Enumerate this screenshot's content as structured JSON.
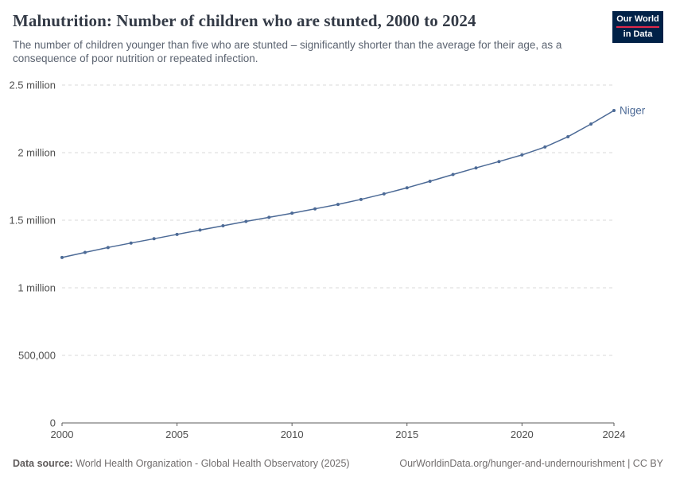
{
  "header": {
    "title": "Malnutrition: Number of children who are stunted, 2000 to 2024",
    "subtitle": "The number of children younger than five who are stunted – significantly shorter than the average for their age, as a consequence of poor nutrition or repeated infection.",
    "logo": {
      "line1": "Our World",
      "line2": "in Data",
      "bg_color": "#002147",
      "accent_color": "#e0294a"
    }
  },
  "chart_data": {
    "type": "line",
    "title": "Malnutrition: Number of children who are stunted, 2000 to 2024",
    "xlabel": "",
    "ylabel": "",
    "xlim": [
      2000,
      2024
    ],
    "ylim": [
      0,
      2500000
    ],
    "grid": "dashed-horizontal",
    "legend_position": "end-of-line-label",
    "line_color": "#4c6a96",
    "axis_color": "#5b5b5b",
    "grid_color": "#d9d9d9",
    "tick_label_color": "#4f4f4f",
    "yticks": [
      {
        "value": 0,
        "label": "0"
      },
      {
        "value": 500000,
        "label": "500,000"
      },
      {
        "value": 1000000,
        "label": "1 million"
      },
      {
        "value": 1500000,
        "label": "1.5 million"
      },
      {
        "value": 2000000,
        "label": "2 million"
      },
      {
        "value": 2500000,
        "label": "2.5 million"
      }
    ],
    "xticks": [
      2000,
      2005,
      2010,
      2015,
      2020,
      2024
    ],
    "series": [
      {
        "name": "Niger",
        "color": "#4c6a96",
        "x": [
          2000,
          2001,
          2002,
          2003,
          2004,
          2005,
          2006,
          2007,
          2008,
          2009,
          2010,
          2011,
          2012,
          2013,
          2014,
          2015,
          2016,
          2017,
          2018,
          2019,
          2020,
          2021,
          2022,
          2023,
          2024
        ],
        "values": [
          1224000,
          1262000,
          1298000,
          1331000,
          1363000,
          1395000,
          1427000,
          1459000,
          1491000,
          1521000,
          1552000,
          1584000,
          1617000,
          1654000,
          1695000,
          1740000,
          1788000,
          1838000,
          1887000,
          1934000,
          1983000,
          2042000,
          2118000,
          2212000,
          2312000
        ]
      }
    ]
  },
  "footer": {
    "source_label": "Data source:",
    "source_text": "World Health Organization - Global Health Observatory (2025)",
    "link_text": "OurWorldinData.org/hunger-and-undernourishment | CC BY"
  }
}
